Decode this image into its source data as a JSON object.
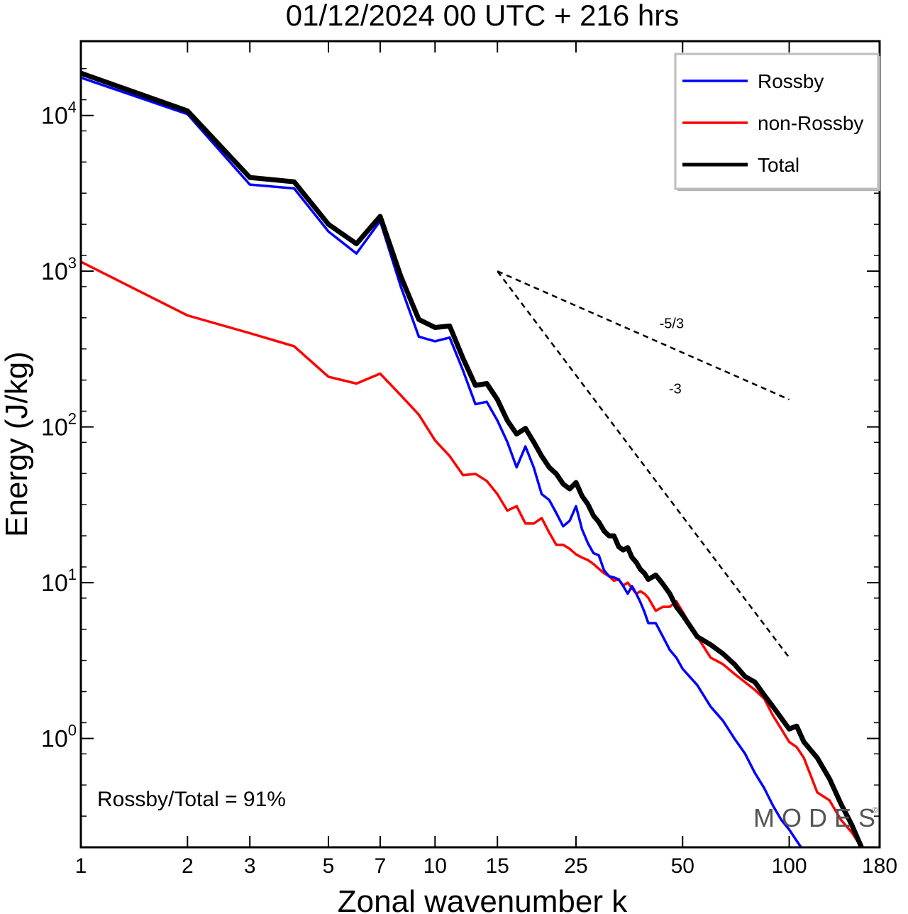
{
  "title": "01/12/2024  00 UTC  + 216 hrs",
  "watermark": "MODES",
  "watermark_mark": "©",
  "annotation": "Rossby/Total = 91%",
  "chart_data": {
    "type": "line",
    "xlabel": "Zonal wavenumber k",
    "ylabel": "Energy (J/kg)",
    "x_scale": "log",
    "y_scale": "log",
    "xlim": [
      1,
      180
    ],
    "ylim": [
      0.2,
      30000
    ],
    "x_ticks": [
      {
        "value": 1,
        "label": "1"
      },
      {
        "value": 2,
        "label": "2"
      },
      {
        "value": 3,
        "label": "3"
      },
      {
        "value": 5,
        "label": "5"
      },
      {
        "value": 7,
        "label": "7"
      },
      {
        "value": 10,
        "label": "10"
      },
      {
        "value": 15,
        "label": "15"
      },
      {
        "value": 25,
        "label": "25"
      },
      {
        "value": 50,
        "label": "50"
      },
      {
        "value": 100,
        "label": "100"
      },
      {
        "value": 180,
        "label": "180"
      }
    ],
    "y_ticks": [
      {
        "value": 1,
        "base": "10",
        "exp": "0"
      },
      {
        "value": 10,
        "base": "10",
        "exp": "1"
      },
      {
        "value": 100,
        "base": "10",
        "exp": "2"
      },
      {
        "value": 1000,
        "base": "10",
        "exp": "3"
      },
      {
        "value": 10000,
        "base": "10",
        "exp": "4"
      }
    ],
    "legend": {
      "position": "top-right",
      "items": [
        {
          "label": "Rossby",
          "color": "#0000ff"
        },
        {
          "label": "non-Rossby",
          "color": "#ff0000"
        },
        {
          "label": "Total",
          "color": "#000000"
        }
      ]
    },
    "series": [
      {
        "name": "Rossby",
        "color": "#0000ff",
        "width": 3.5,
        "x": [
          1,
          2,
          3,
          4,
          5,
          6,
          7,
          8,
          9,
          10,
          11,
          12,
          13,
          14,
          15,
          16,
          17,
          18,
          19,
          20,
          21,
          22,
          23,
          24,
          25,
          26,
          27,
          28,
          29,
          30,
          31,
          32,
          33,
          34,
          35,
          36,
          37,
          38,
          39,
          40,
          42,
          44,
          46,
          48,
          50,
          55,
          60,
          65,
          70,
          75,
          80,
          85,
          90,
          95,
          100,
          105,
          108
        ],
        "y": [
          17500,
          10200,
          3600,
          3400,
          1800,
          1300,
          2100,
          800,
          380,
          355,
          375,
          230,
          140,
          145,
          110,
          80,
          55,
          75,
          55,
          37,
          34,
          28,
          23,
          25,
          31,
          22,
          18,
          15.5,
          15,
          12,
          11,
          10.8,
          10.5,
          9.5,
          8.5,
          9.5,
          8.5,
          7.5,
          6.5,
          5.5,
          5.5,
          4.5,
          3.7,
          3.3,
          2.8,
          2.2,
          1.6,
          1.3,
          1.0,
          0.8,
          0.6,
          0.48,
          0.37,
          0.3,
          0.26,
          0.22,
          0.2
        ]
      },
      {
        "name": "non-Rossby",
        "color": "#ff0000",
        "width": 3.5,
        "x": [
          1,
          2,
          3,
          4,
          5,
          6,
          7,
          8,
          9,
          10,
          11,
          12,
          13,
          14,
          15,
          16,
          17,
          18,
          19,
          20,
          21,
          22,
          23,
          24,
          25,
          26,
          27,
          28,
          29,
          30,
          31,
          32,
          33,
          34,
          35,
          36,
          37,
          38,
          39,
          40,
          42,
          44,
          46,
          48,
          50,
          55,
          60,
          65,
          70,
          75,
          80,
          85,
          90,
          95,
          100,
          105,
          110,
          120,
          130,
          140,
          150,
          160
        ],
        "y": [
          1150,
          520,
          400,
          330,
          210,
          190,
          220,
          160,
          120,
          82,
          65,
          49,
          50,
          45,
          37,
          29,
          31,
          24,
          24,
          26,
          21,
          17.5,
          17.5,
          16.5,
          15.2,
          14.5,
          14,
          13.2,
          12.3,
          11.5,
          11,
          10.3,
          10.5,
          9.6,
          10,
          9.2,
          8.5,
          8.8,
          8.5,
          8,
          6.6,
          7,
          7,
          7.6,
          6.5,
          4.5,
          3.3,
          3,
          2.6,
          2.3,
          2.05,
          1.8,
          1.4,
          1.15,
          0.95,
          0.88,
          0.75,
          0.45,
          0.4,
          0.3,
          0.25,
          0.2
        ]
      },
      {
        "name": "Total",
        "color": "#000000",
        "width": 7,
        "x": [
          1,
          2,
          3,
          4,
          5,
          6,
          7,
          8,
          9,
          10,
          11,
          12,
          13,
          14,
          15,
          16,
          17,
          18,
          19,
          20,
          21,
          22,
          23,
          24,
          25,
          26,
          27,
          28,
          29,
          30,
          31,
          32,
          33,
          34,
          35,
          36,
          37,
          38,
          39,
          40,
          42,
          44,
          46,
          48,
          50,
          55,
          60,
          65,
          70,
          75,
          80,
          85,
          90,
          95,
          100,
          105,
          110,
          120,
          130,
          140,
          150,
          160
        ],
        "y": [
          18700,
          10700,
          4000,
          3750,
          2000,
          1500,
          2250,
          930,
          490,
          435,
          445,
          275,
          185,
          190,
          150,
          110,
          90,
          98,
          80,
          65,
          55,
          50,
          43,
          40,
          44,
          36,
          32,
          27,
          24.5,
          21.5,
          20,
          20,
          17,
          16.2,
          16.8,
          14.5,
          13.5,
          12.2,
          11.5,
          10.5,
          11.2,
          9.8,
          8.5,
          7,
          6.2,
          4.5,
          4,
          3.5,
          3,
          2.5,
          2.3,
          1.9,
          1.6,
          1.35,
          1.15,
          1.2,
          0.95,
          0.75,
          0.55,
          0.38,
          0.28,
          0.2
        ]
      }
    ],
    "reference_lines": [
      {
        "label": "-5/3",
        "x": [
          15,
          100
        ],
        "y": [
          1000,
          150
        ]
      },
      {
        "label": "-3",
        "x": [
          15,
          100
        ],
        "y": [
          1000,
          3.3
        ]
      }
    ]
  }
}
